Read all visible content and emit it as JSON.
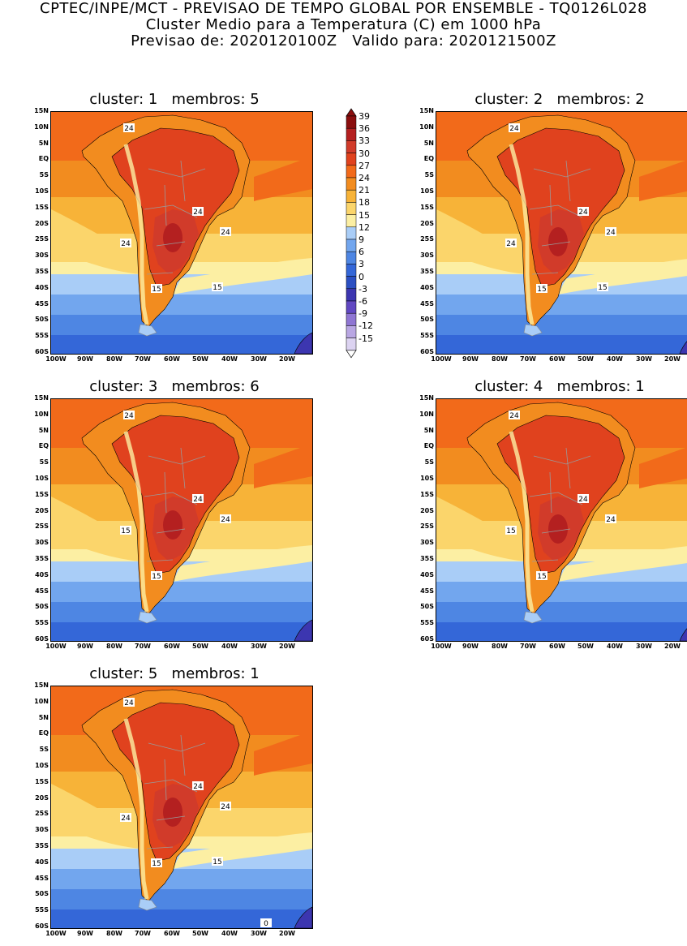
{
  "title": {
    "line1": "CPTEC/INPE/MCT - PREVISAO DE TEMPO GLOBAL POR ENSEMBLE - TQ0126L028",
    "line2": "Cluster Medio para a Temperatura (C) em 1000 hPa",
    "line3": "Previsao de: 2020120100Z   Valido para: 2020121500Z"
  },
  "panels": [
    {
      "title": "cluster: 1   membros: 5",
      "contour_labels": [
        "24",
        "24",
        "24",
        "24",
        "15",
        "15"
      ]
    },
    {
      "title": "cluster: 2   membros: 2",
      "contour_labels": [
        "24",
        "24",
        "24",
        "24",
        "15",
        "15"
      ]
    },
    {
      "title": "cluster: 3   membros: 6",
      "contour_labels": [
        "24",
        "24",
        "24",
        "15",
        "15"
      ]
    },
    {
      "title": "cluster: 4   membros: 1",
      "contour_labels": [
        "24",
        "24",
        "24",
        "15",
        "15"
      ]
    },
    {
      "title": "cluster: 5   membros: 1",
      "contour_labels": [
        "24",
        "24",
        "24",
        "24",
        "15",
        "15",
        "0"
      ]
    }
  ],
  "axis": {
    "lat_labels": [
      "15N",
      "10N",
      "5N",
      "EQ",
      "5S",
      "10S",
      "15S",
      "20S",
      "25S",
      "30S",
      "35S",
      "40S",
      "45S",
      "50S",
      "55S",
      "60S"
    ],
    "lon_labels": [
      "100W",
      "90W",
      "80W",
      "70W",
      "60W",
      "50W",
      "40W",
      "30W",
      "20W"
    ]
  },
  "colorbar": {
    "levels": [
      "39",
      "36",
      "33",
      "30",
      "27",
      "24",
      "21",
      "18",
      "15",
      "12",
      "9",
      "6",
      "3",
      "0",
      "-3",
      "-6",
      "-9",
      "-12",
      "-15"
    ],
    "colors": [
      "#8b0e0e",
      "#b42020",
      "#d13b2a",
      "#e0421e",
      "#f26a1a",
      "#f28c1f",
      "#f7b338",
      "#fbd56b",
      "#fcefa3",
      "#a9cdf7",
      "#72a6ee",
      "#4e86e3",
      "#3467d8",
      "#2b4fc2",
      "#3c36b0",
      "#6148c2",
      "#8f76d3",
      "#b9a7e3",
      "#dcd3f1"
    ]
  }
}
